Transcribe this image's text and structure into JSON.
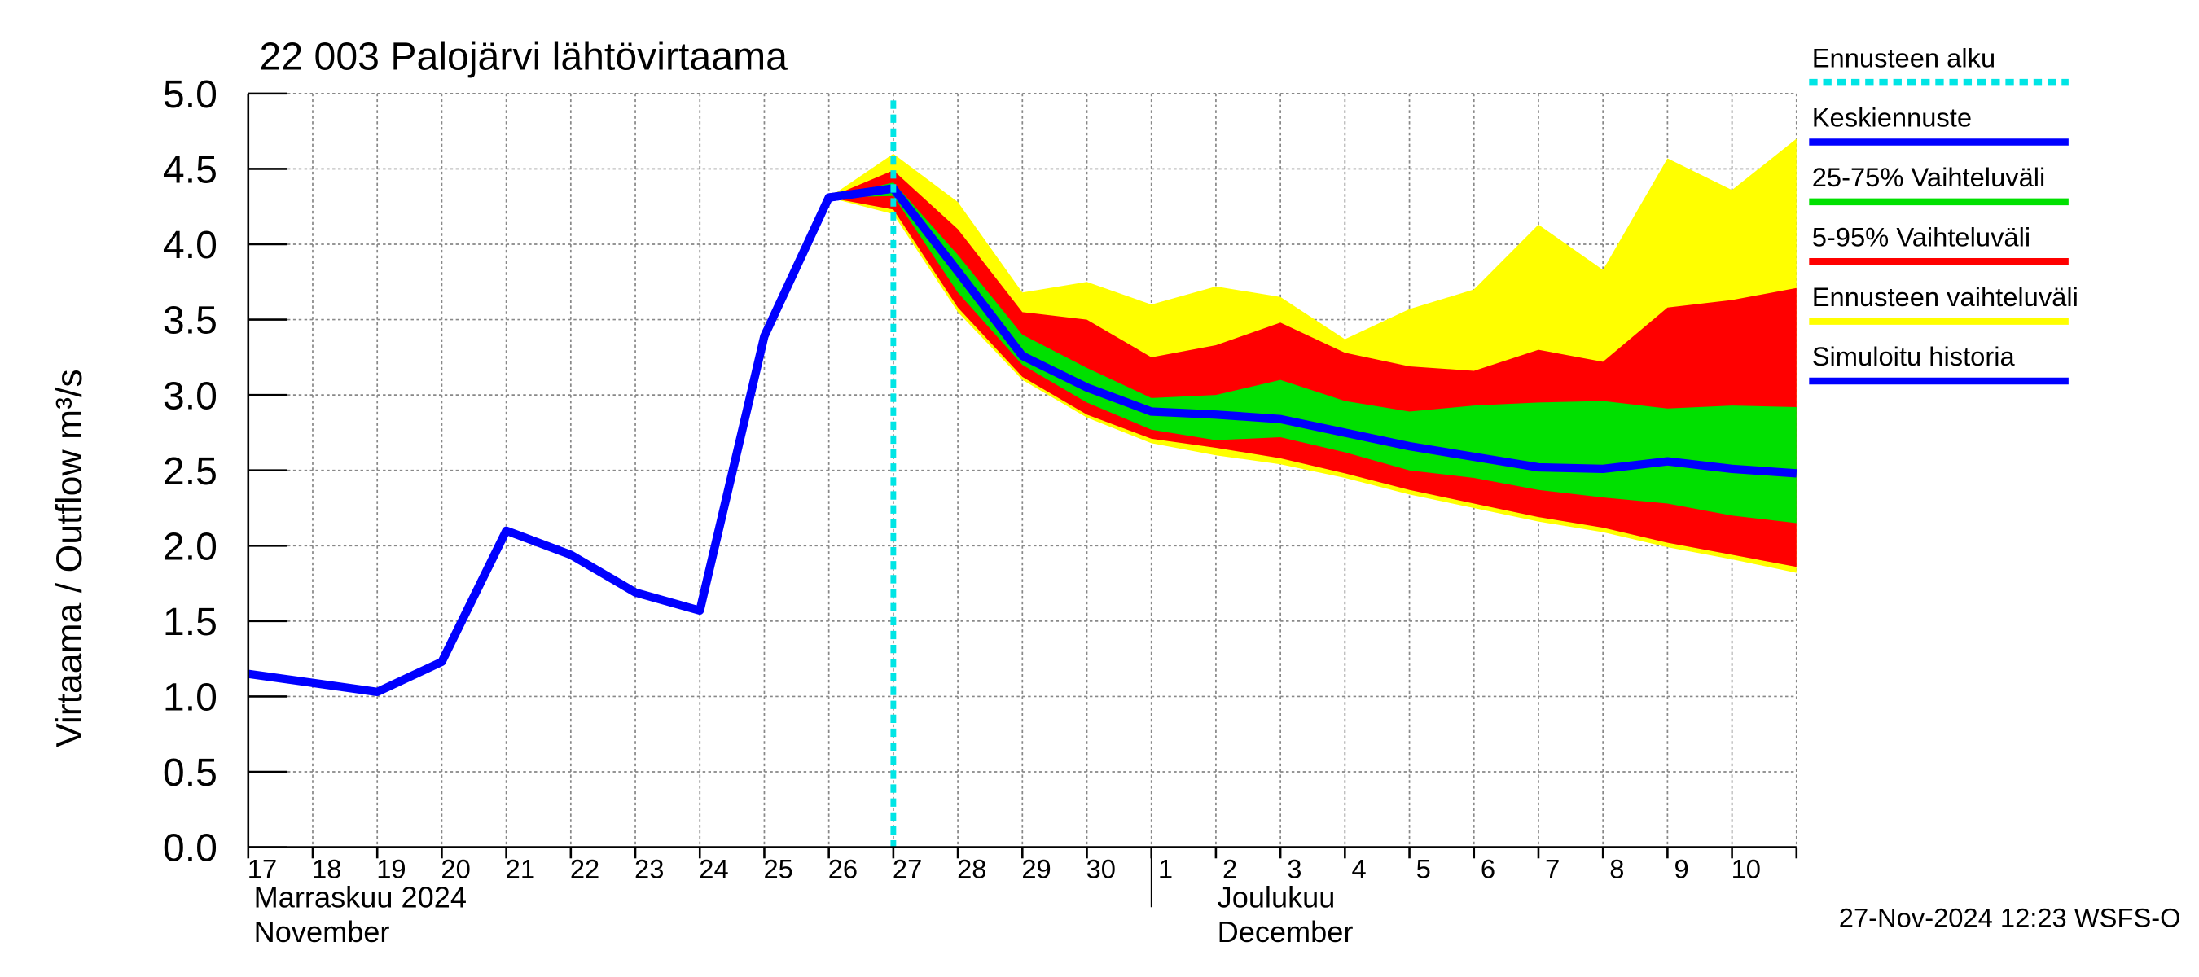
{
  "chart_data": {
    "type": "band_line",
    "title": "22 003 Palojärvi lähtövirtaama",
    "y_label": "Virtaama / Outflow    m³/s",
    "footer": "27-Nov-2024 12:23 WSFS-O",
    "months": [
      [
        "Marraskuu 2024",
        "November"
      ],
      [
        "Joulukuu",
        "December"
      ]
    ],
    "categories": [
      "17",
      "18",
      "19",
      "20",
      "21",
      "22",
      "23",
      "24",
      "25",
      "26",
      "27",
      "28",
      "29",
      "30",
      "1",
      "2",
      "3",
      "4",
      "5",
      "6",
      "7",
      "8",
      "9",
      "10",
      null
    ],
    "ylim": [
      0,
      5
    ],
    "yticks": [
      {
        "value": 0,
        "label": "0.0"
      },
      {
        "value": 0.5,
        "label": "0.5"
      },
      {
        "value": 1,
        "label": "1.0"
      },
      {
        "value": 1.5,
        "label": "1.5"
      },
      {
        "value": 2,
        "label": "2.0"
      },
      {
        "value": 2.5,
        "label": "2.5"
      },
      {
        "value": 3,
        "label": "3.0"
      },
      {
        "value": 3.5,
        "label": "3.5"
      },
      {
        "value": 4,
        "label": "4.0"
      },
      {
        "value": 4.5,
        "label": "4.5"
      },
      {
        "value": 5,
        "label": "5.0"
      }
    ],
    "grid": true,
    "forecast_start": {
      "name": "Ennusteen alku",
      "color": "#00e5e5",
      "category_index": 10
    },
    "bands": [
      {
        "name": "Ennusteen vaihteluväli",
        "color": "#ffff00",
        "upper": [
          null,
          null,
          null,
          null,
          null,
          null,
          null,
          null,
          null,
          4.31,
          4.6,
          4.28,
          3.68,
          3.75,
          3.6,
          3.72,
          3.65,
          3.37,
          3.57,
          3.7,
          4.13,
          3.83,
          4.57,
          4.36,
          4.7
        ],
        "lower": [
          null,
          null,
          null,
          null,
          null,
          null,
          null,
          null,
          null,
          4.31,
          4.2,
          3.55,
          3.1,
          2.85,
          2.68,
          2.6,
          2.54,
          2.45,
          2.34,
          2.25,
          2.16,
          2.09,
          1.99,
          1.91,
          1.82
        ]
      },
      {
        "name": "5-95% Vaihteluväli",
        "color": "#ff0000",
        "upper": [
          null,
          null,
          null,
          null,
          null,
          null,
          null,
          null,
          null,
          4.31,
          4.49,
          4.1,
          3.55,
          3.5,
          3.25,
          3.33,
          3.48,
          3.28,
          3.19,
          3.16,
          3.3,
          3.22,
          3.58,
          3.63,
          3.71
        ],
        "lower": [
          null,
          null,
          null,
          null,
          null,
          null,
          null,
          null,
          null,
          4.31,
          4.23,
          3.58,
          3.12,
          2.87,
          2.71,
          2.65,
          2.58,
          2.48,
          2.37,
          2.28,
          2.19,
          2.12,
          2.02,
          1.94,
          1.86
        ]
      },
      {
        "name": "25-75% Vaihteluväli",
        "color": "#00e000",
        "upper": [
          null,
          null,
          null,
          null,
          null,
          null,
          null,
          null,
          null,
          4.31,
          4.41,
          3.93,
          3.4,
          3.18,
          2.98,
          3.0,
          3.1,
          2.96,
          2.89,
          2.93,
          2.95,
          2.96,
          2.91,
          2.93,
          2.92
        ],
        "lower": [
          null,
          null,
          null,
          null,
          null,
          null,
          null,
          null,
          null,
          4.31,
          4.32,
          3.68,
          3.2,
          2.95,
          2.77,
          2.7,
          2.72,
          2.62,
          2.5,
          2.45,
          2.37,
          2.32,
          2.28,
          2.2,
          2.15
        ]
      }
    ],
    "series": [
      {
        "name": "Simuloitu historia",
        "color": "#0000ff",
        "values": [
          1.15,
          1.09,
          1.03,
          1.23,
          2.1,
          1.94,
          1.69,
          1.57,
          3.39,
          4.31,
          4.37,
          null,
          null,
          null,
          null,
          null,
          null,
          null,
          null,
          null,
          null,
          null,
          null,
          null,
          null
        ]
      },
      {
        "name": "Keskiennuste",
        "color": "#0000ff",
        "values": [
          null,
          null,
          null,
          null,
          null,
          null,
          null,
          null,
          null,
          4.31,
          4.37,
          3.82,
          3.26,
          3.05,
          2.89,
          2.87,
          2.84,
          2.75,
          2.66,
          2.59,
          2.52,
          2.51,
          2.56,
          2.51,
          2.48
        ]
      }
    ],
    "legend_order": [
      "forecast_start",
      "series.1",
      "bands.2",
      "bands.1",
      "bands.0",
      "series.0"
    ]
  }
}
